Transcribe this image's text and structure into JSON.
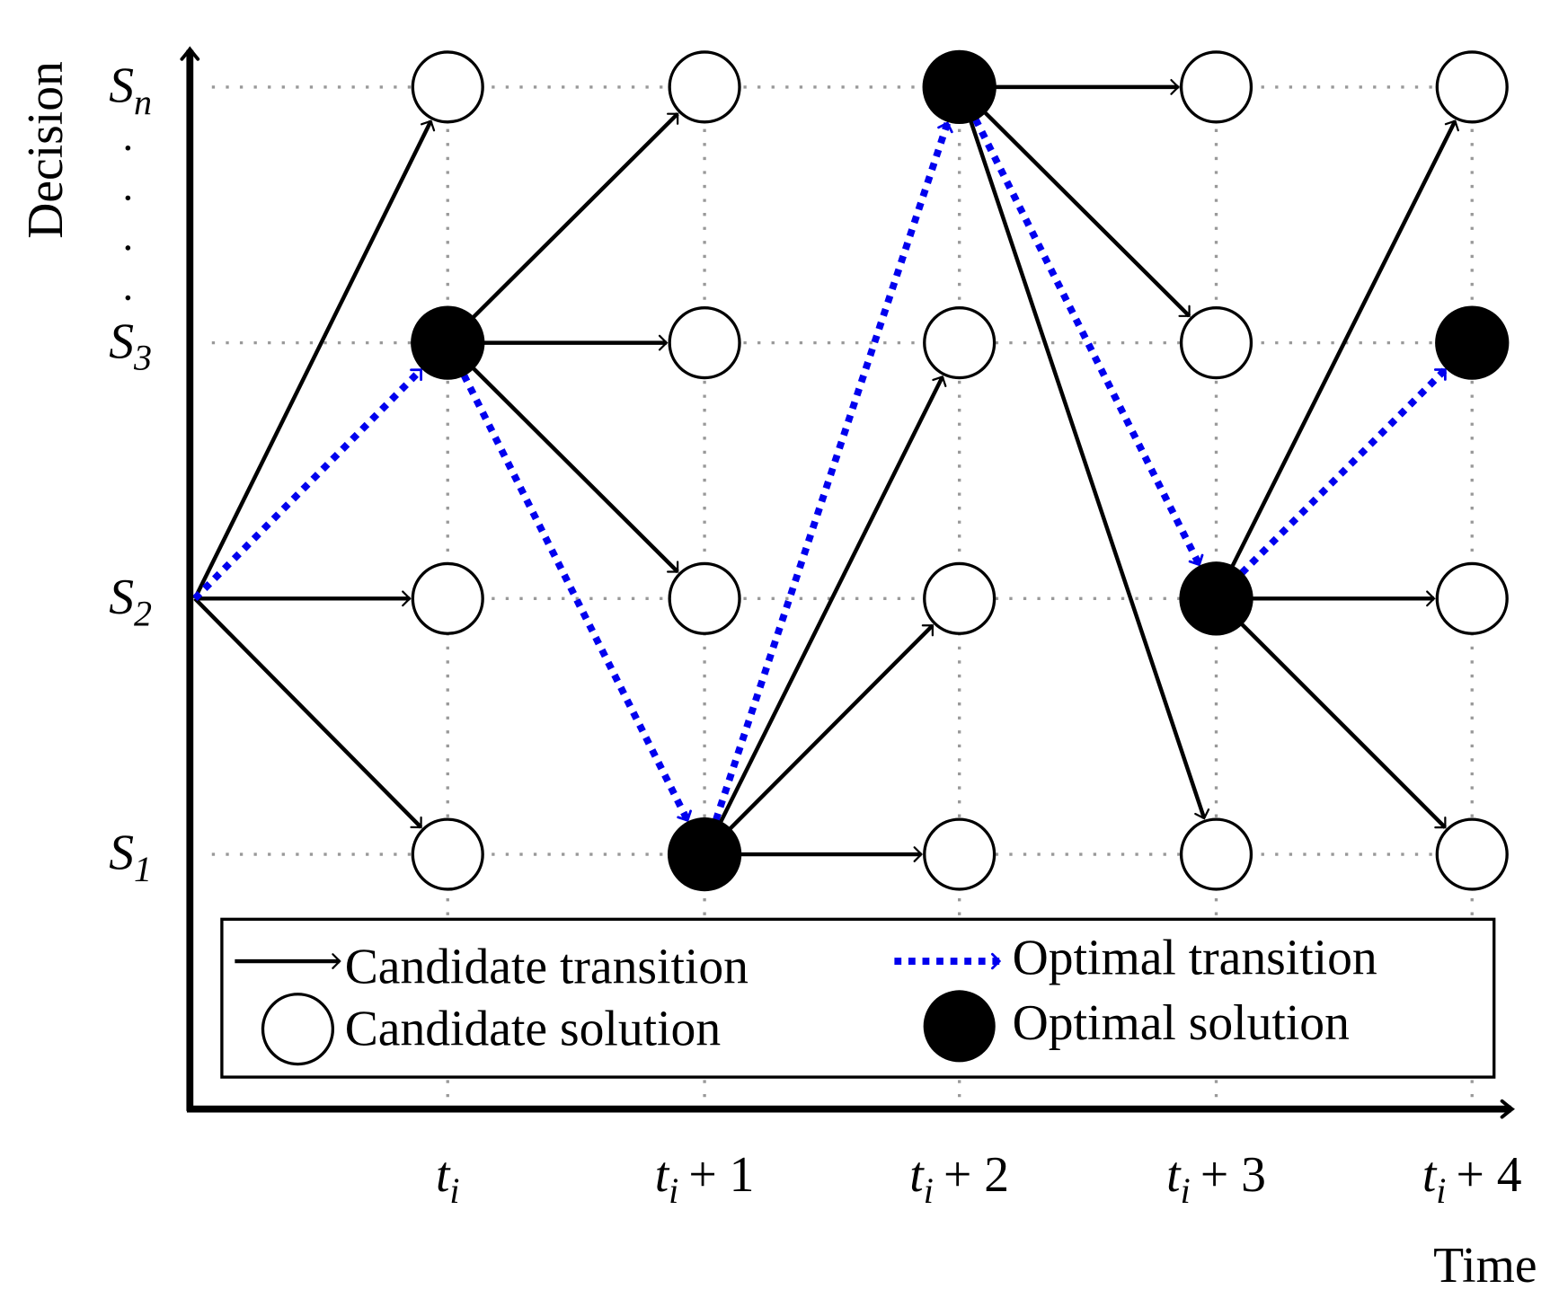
{
  "y_axis_label": "Decision",
  "x_axis_label": "Time",
  "rows": [
    {
      "base": "S",
      "sub": "n"
    },
    {
      "base": "S",
      "sub": "3"
    },
    {
      "base": "S",
      "sub": "2"
    },
    {
      "base": "S",
      "sub": "1"
    }
  ],
  "columns": [
    {
      "base": "t",
      "sub": "i"
    },
    {
      "base": "t",
      "sub": "i",
      "rest": "+ 1"
    },
    {
      "base": "t",
      "sub": "i",
      "rest": "+ 2"
    },
    {
      "base": "t",
      "sub": "i",
      "rest": "+ 3"
    },
    {
      "base": "t",
      "sub": "i",
      "rest": "+ 4"
    }
  ],
  "legend": {
    "candidate_transition": "Candidate transition",
    "optimal_transition": "Optimal transition",
    "candidate_solution": "Candidate solution",
    "optimal_solution": "Optimal solution"
  }
}
